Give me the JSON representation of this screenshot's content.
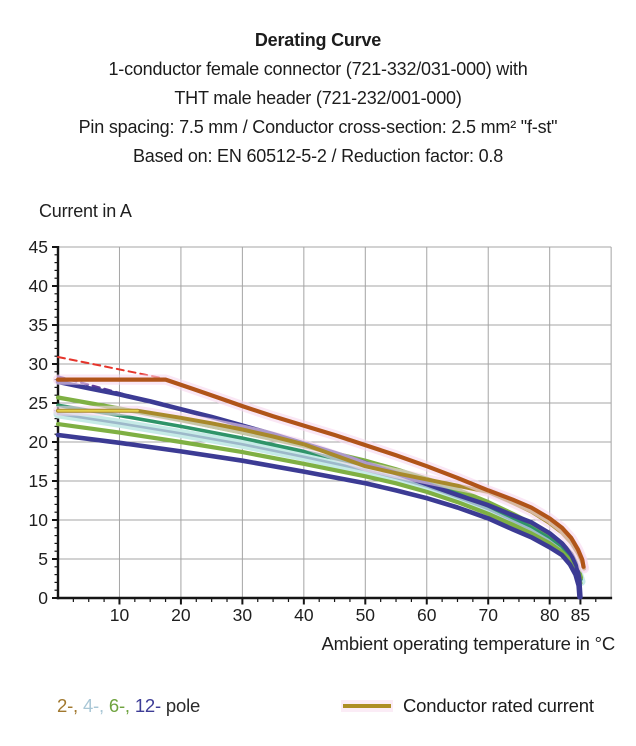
{
  "header": {
    "title": "Derating Curve",
    "subtitle_lines": [
      "1-conductor female connector (721-332/031-000) with",
      "THT male header (721-232/001-000)",
      "Pin spacing: 7.5 mm / Conductor cross-section: 2.5 mm² \"f-st\"",
      "Based on: EN 60512-5-2 / Reduction factor: 0.8"
    ]
  },
  "y_axis_label": "Current in A",
  "x_axis_label": "Ambient operating temperature in °C",
  "legend": {
    "pole_items": [
      {
        "label": "2-,",
        "color": "#a1782e"
      },
      {
        "label": "4-,",
        "color": "#a9c7d6"
      },
      {
        "label": "6-,",
        "color": "#6fa33f"
      },
      {
        "label": "12-",
        "color": "#3d3c96"
      }
    ],
    "pole_suffix": " pole",
    "rated_label": "Conductor rated current",
    "rated_swatch_color": "#ad8f26"
  },
  "chart_data": {
    "type": "line",
    "title": "Derating Curve",
    "xlabel": "Ambient operating temperature in °C",
    "ylabel": "Current in A",
    "xlim": [
      0,
      90
    ],
    "ylim": [
      0,
      45
    ],
    "grid": true,
    "grid_color": "#a4a4a4",
    "axis_color": "#151515",
    "tick_label_color": "#1f1f1f",
    "x_major_ticks": [
      10,
      20,
      30,
      40,
      50,
      60,
      70,
      80,
      85
    ],
    "x_grid_step": 10,
    "x_minor_step": 2.5,
    "y_major_ticks": [
      0,
      5,
      10,
      15,
      20,
      25,
      30,
      35,
      40,
      45
    ],
    "y_grid_step": 5,
    "y_minor_step": 1,
    "legend_position": "bottom",
    "series": [
      {
        "id": "limit-dashed-red",
        "name": "limit line (dashed red)",
        "color": "#e5342b",
        "width": 2,
        "dash": "7 5",
        "points": [
          [
            0,
            30.9
          ],
          [
            17.5,
            28.1
          ]
        ]
      },
      {
        "id": "limit-dashed-violet",
        "name": "limit line (dashed violet)",
        "color": "#5d3a99",
        "width": 2.4,
        "dash": "7 5",
        "points": [
          [
            0,
            28.4
          ],
          [
            8,
            26.7
          ],
          [
            16,
            25.0
          ],
          [
            21,
            23.9
          ]
        ]
      },
      {
        "id": "pole4",
        "name": "4-pole",
        "color": "#9db9ca",
        "width": 2.6,
        "band": {
          "color": "#c6ebe7",
          "width": 9
        },
        "glow": true,
        "points": [
          [
            0,
            23.6
          ],
          [
            10,
            22.4
          ],
          [
            20,
            21.1
          ],
          [
            30,
            19.7
          ],
          [
            40,
            18.1
          ],
          [
            50,
            16.4
          ],
          [
            55,
            15.4
          ],
          [
            60,
            14.3
          ],
          [
            65,
            12.9
          ],
          [
            70,
            11.4
          ],
          [
            74,
            9.9
          ],
          [
            77,
            8.8
          ],
          [
            80,
            7.4
          ],
          [
            82,
            6.3
          ],
          [
            83.5,
            5.0
          ],
          [
            84.5,
            3.6
          ],
          [
            85.1,
            2.1
          ]
        ]
      },
      {
        "id": "pole6-dark",
        "name": "6-pole (dark green)",
        "color": "#2f9469",
        "width": 3.6,
        "points": [
          [
            0,
            24.7
          ],
          [
            10,
            23.4
          ],
          [
            20,
            22.0
          ],
          [
            30,
            20.5
          ],
          [
            40,
            18.8
          ],
          [
            50,
            17.0
          ],
          [
            55,
            16.0
          ],
          [
            60,
            14.8
          ],
          [
            65,
            13.4
          ],
          [
            70,
            11.8
          ],
          [
            74,
            10.3
          ],
          [
            77,
            9.2
          ],
          [
            80,
            7.8
          ],
          [
            82,
            6.6
          ],
          [
            83.5,
            5.3
          ],
          [
            84.5,
            3.9
          ],
          [
            85.1,
            2.4
          ]
        ]
      },
      {
        "id": "pole6-upper",
        "name": "6-pole (upper)",
        "color": "#7fb043",
        "width": 4.2,
        "points": [
          [
            0,
            25.7
          ],
          [
            10,
            24.3
          ],
          [
            20,
            22.8
          ],
          [
            30,
            21.2
          ],
          [
            40,
            19.5
          ],
          [
            50,
            17.6
          ],
          [
            55,
            16.5
          ],
          [
            60,
            15.3
          ],
          [
            65,
            13.9
          ],
          [
            70,
            12.3
          ],
          [
            74,
            10.8
          ],
          [
            77,
            9.6
          ],
          [
            80,
            8.2
          ],
          [
            82,
            7.0
          ],
          [
            83.5,
            5.7
          ],
          [
            84.5,
            4.2
          ],
          [
            85.1,
            2.6
          ]
        ]
      },
      {
        "id": "pole6-lower",
        "name": "6-pole (lower)",
        "color": "#7fb043",
        "width": 4.2,
        "points": [
          [
            0,
            22.3
          ],
          [
            10,
            21.2
          ],
          [
            20,
            20.0
          ],
          [
            30,
            18.7
          ],
          [
            40,
            17.2
          ],
          [
            50,
            15.6
          ],
          [
            55,
            14.7
          ],
          [
            60,
            13.6
          ],
          [
            65,
            12.3
          ],
          [
            70,
            10.8
          ],
          [
            74,
            9.4
          ],
          [
            77,
            8.3
          ],
          [
            80,
            7.0
          ],
          [
            82,
            5.9
          ],
          [
            83.5,
            4.7
          ],
          [
            84.4,
            3.3
          ],
          [
            85,
            1.9
          ]
        ]
      },
      {
        "id": "pole12-upper",
        "name": "12-pole (upper)",
        "color": "#3c3b94",
        "width": 4.6,
        "points": [
          [
            0,
            27.7
          ],
          [
            5,
            26.9
          ],
          [
            10,
            26.1
          ],
          [
            15,
            25.2
          ],
          [
            20,
            24.2
          ],
          [
            25,
            23.2
          ],
          [
            30,
            22.1
          ],
          [
            35,
            21.0
          ],
          [
            40,
            19.8
          ],
          [
            45,
            18.6
          ],
          [
            50,
            17.3
          ],
          [
            55,
            16.0
          ],
          [
            60,
            14.6
          ],
          [
            65,
            13.2
          ],
          [
            70,
            11.9
          ],
          [
            74,
            10.6
          ],
          [
            77,
            9.7
          ],
          [
            80,
            8.3
          ],
          [
            82,
            7.0
          ],
          [
            83.5,
            5.6
          ],
          [
            84.4,
            4.1
          ],
          [
            84.8,
            2.5
          ],
          [
            85,
            0.1
          ]
        ]
      },
      {
        "id": "pole12-lower",
        "name": "12-pole (lower)",
        "color": "#3c3b94",
        "width": 4.6,
        "points": [
          [
            0,
            20.9
          ],
          [
            10,
            19.9
          ],
          [
            20,
            18.8
          ],
          [
            30,
            17.6
          ],
          [
            40,
            16.2
          ],
          [
            50,
            14.7
          ],
          [
            55,
            13.8
          ],
          [
            60,
            12.8
          ],
          [
            65,
            11.6
          ],
          [
            70,
            10.2
          ],
          [
            74,
            8.8
          ],
          [
            77,
            7.8
          ],
          [
            80,
            6.5
          ],
          [
            82,
            5.5
          ],
          [
            83.3,
            4.3
          ],
          [
            84.2,
            3.0
          ],
          [
            84.7,
            1.6
          ],
          [
            84.85,
            0.1
          ]
        ]
      },
      {
        "id": "conductor-rated",
        "name": "Conductor rated current",
        "color": "#a8892b",
        "width": 4,
        "glow": true,
        "points": [
          [
            0,
            24.0
          ],
          [
            13,
            24.0
          ],
          [
            20,
            23.1
          ],
          [
            25,
            22.4
          ],
          [
            30,
            21.6
          ],
          [
            35,
            20.7
          ],
          [
            40,
            19.7
          ],
          [
            45,
            18.3
          ],
          [
            50,
            16.9
          ],
          [
            55,
            16.0
          ],
          [
            60,
            15.2
          ],
          [
            65,
            14.4
          ],
          [
            70,
            13.6
          ],
          [
            74,
            12.2
          ],
          [
            77,
            11.1
          ],
          [
            80,
            9.6
          ],
          [
            82,
            8.4
          ],
          [
            83.5,
            7.1
          ],
          [
            84.7,
            5.6
          ],
          [
            85.4,
            4.4
          ],
          [
            85.6,
            3.8
          ]
        ]
      },
      {
        "id": "conductor-rated-flat",
        "name": "Conductor rated current (flat segment)",
        "color": "#e4d14c",
        "width": 2,
        "points": [
          [
            0,
            24.0
          ],
          [
            13,
            24.0
          ]
        ]
      },
      {
        "id": "pole2",
        "name": "2-pole",
        "color": "#b05419",
        "width": 4.2,
        "glow": true,
        "points": [
          [
            0,
            28.0
          ],
          [
            17.5,
            28.0
          ],
          [
            22,
            26.8
          ],
          [
            26,
            25.7
          ],
          [
            30,
            24.6
          ],
          [
            35,
            23.3
          ],
          [
            40,
            22.1
          ],
          [
            45,
            20.9
          ],
          [
            50,
            19.6
          ],
          [
            55,
            18.3
          ],
          [
            60,
            16.9
          ],
          [
            65,
            15.4
          ],
          [
            70,
            13.8
          ],
          [
            74,
            12.6
          ],
          [
            77,
            11.6
          ],
          [
            80,
            10.2
          ],
          [
            82,
            9.0
          ],
          [
            83.5,
            7.7
          ],
          [
            84.6,
            6.2
          ],
          [
            85.3,
            4.9
          ],
          [
            85.5,
            4.0
          ]
        ]
      }
    ]
  }
}
